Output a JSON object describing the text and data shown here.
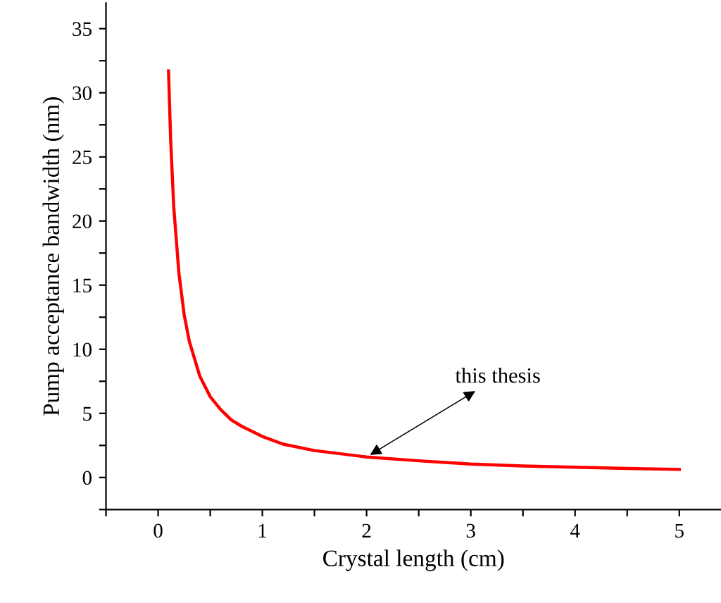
{
  "chart_data": {
    "type": "line",
    "xlabel": "Crystal length (cm)",
    "ylabel": "Pump acceptance bandwidth (nm)",
    "x": [
      0.1,
      0.12,
      0.15,
      0.2,
      0.25,
      0.3,
      0.4,
      0.5,
      0.6,
      0.7,
      0.8,
      1.0,
      1.2,
      1.5,
      2.0,
      2.5,
      3.0,
      3.5,
      4.0,
      4.5,
      5.0
    ],
    "series": [
      {
        "color": "#ff0000",
        "values": [
          31.7,
          26.4,
          21.1,
          15.9,
          12.7,
          10.6,
          7.9,
          6.3,
          5.3,
          4.5,
          4.0,
          3.2,
          2.6,
          2.1,
          1.6,
          1.3,
          1.05,
          0.9,
          0.8,
          0.7,
          0.63
        ]
      }
    ],
    "xlim": [
      -0.5,
      5.4
    ],
    "ylim": [
      -2.5,
      37
    ],
    "xticks": [
      {
        "value": -0.5,
        "label": null
      },
      0,
      {
        "value": 0.5,
        "label": null
      },
      1,
      {
        "value": 1.5,
        "label": null
      },
      2,
      {
        "value": 2.5,
        "label": null
      },
      3,
      {
        "value": 3.5,
        "label": null
      },
      4,
      {
        "value": 4.5,
        "label": null
      },
      5
    ],
    "yticks": [
      {
        "value": -2.5,
        "label": null
      },
      0,
      {
        "value": 2.5,
        "label": null
      },
      5,
      {
        "value": 7.5,
        "label": null
      },
      10,
      {
        "value": 12.5,
        "label": null
      },
      15,
      {
        "value": 17.5,
        "label": null
      },
      20,
      {
        "value": 22.5,
        "label": null
      },
      25,
      {
        "value": 27.5,
        "label": null
      },
      30,
      {
        "value": 32.5,
        "label": null
      },
      35
    ],
    "annotations": [
      {
        "text": "this thesis",
        "x": 2,
        "y": 1.6
      }
    ],
    "grid": false,
    "legend": false,
    "marker": "none",
    "line_style": "solid"
  }
}
